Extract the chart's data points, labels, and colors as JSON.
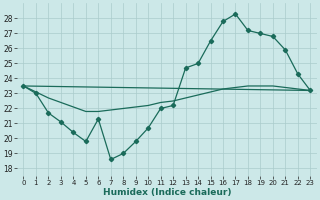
{
  "title": "",
  "xlabel": "Humidex (Indice chaleur)",
  "background_color": "#cce8e8",
  "grid_color": "#aacccc",
  "line_color": "#1a6b5a",
  "xlim": [
    -0.5,
    23.5
  ],
  "ylim": [
    17.5,
    29.0
  ],
  "yticks": [
    18,
    19,
    20,
    21,
    22,
    23,
    24,
    25,
    26,
    27,
    28
  ],
  "xticks": [
    0,
    1,
    2,
    3,
    4,
    5,
    6,
    7,
    8,
    9,
    10,
    11,
    12,
    13,
    14,
    15,
    16,
    17,
    18,
    19,
    20,
    21,
    22,
    23
  ],
  "line1_x": [
    0,
    1,
    2,
    3,
    4,
    5,
    6,
    7,
    8,
    9,
    10,
    11,
    12,
    13,
    14,
    15,
    16,
    17,
    18,
    19,
    20,
    21,
    22,
    23
  ],
  "line1_y": [
    23.5,
    23.0,
    21.7,
    21.1,
    20.4,
    19.8,
    21.3,
    18.6,
    19.0,
    19.8,
    20.7,
    22.0,
    22.2,
    24.7,
    25.0,
    26.5,
    27.8,
    28.3,
    27.2,
    27.0,
    26.8,
    25.9,
    24.3,
    23.2
  ],
  "line2_x": [
    0,
    23
  ],
  "line2_y": [
    23.5,
    23.2
  ],
  "line3_x": [
    0,
    1,
    2,
    3,
    4,
    5,
    6,
    7,
    8,
    9,
    10,
    11,
    12,
    13,
    14,
    15,
    16,
    17,
    18,
    19,
    20,
    21,
    22,
    23
  ],
  "line3_y": [
    23.5,
    23.1,
    22.7,
    22.4,
    22.1,
    21.8,
    21.8,
    21.9,
    22.0,
    22.1,
    22.2,
    22.4,
    22.5,
    22.7,
    22.9,
    23.1,
    23.3,
    23.4,
    23.5,
    23.5,
    23.5,
    23.4,
    23.3,
    23.2
  ],
  "xlabel_fontsize": 6.5,
  "tick_fontsize": 5.0,
  "marker_size": 2.2,
  "line_width": 0.9
}
